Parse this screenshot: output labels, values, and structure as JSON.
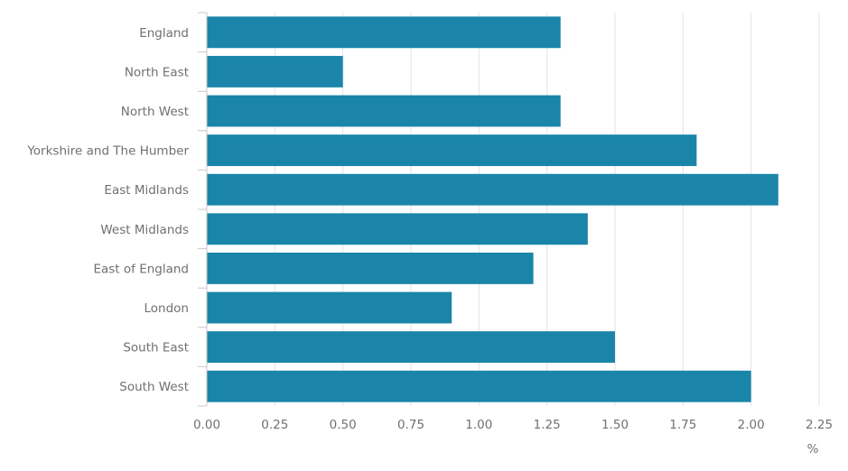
{
  "chart_data": {
    "type": "bar",
    "orientation": "horizontal",
    "categories": [
      "England",
      "North East",
      "North West",
      "Yorkshire and The Humber",
      "East Midlands",
      "West Midlands",
      "East of England",
      "London",
      "South East",
      "South West"
    ],
    "values": [
      1.3,
      0.5,
      1.3,
      1.8,
      2.1,
      1.4,
      1.2,
      0.9,
      1.5,
      2.0
    ],
    "xlim": [
      0,
      2.25
    ],
    "x_ticks": [
      "0.00",
      "0.25",
      "0.50",
      "0.75",
      "1.00",
      "1.25",
      "1.50",
      "1.75",
      "2.00",
      "2.25"
    ],
    "x_unit": "%",
    "grid": true,
    "bar_color": "#1a85a8"
  }
}
